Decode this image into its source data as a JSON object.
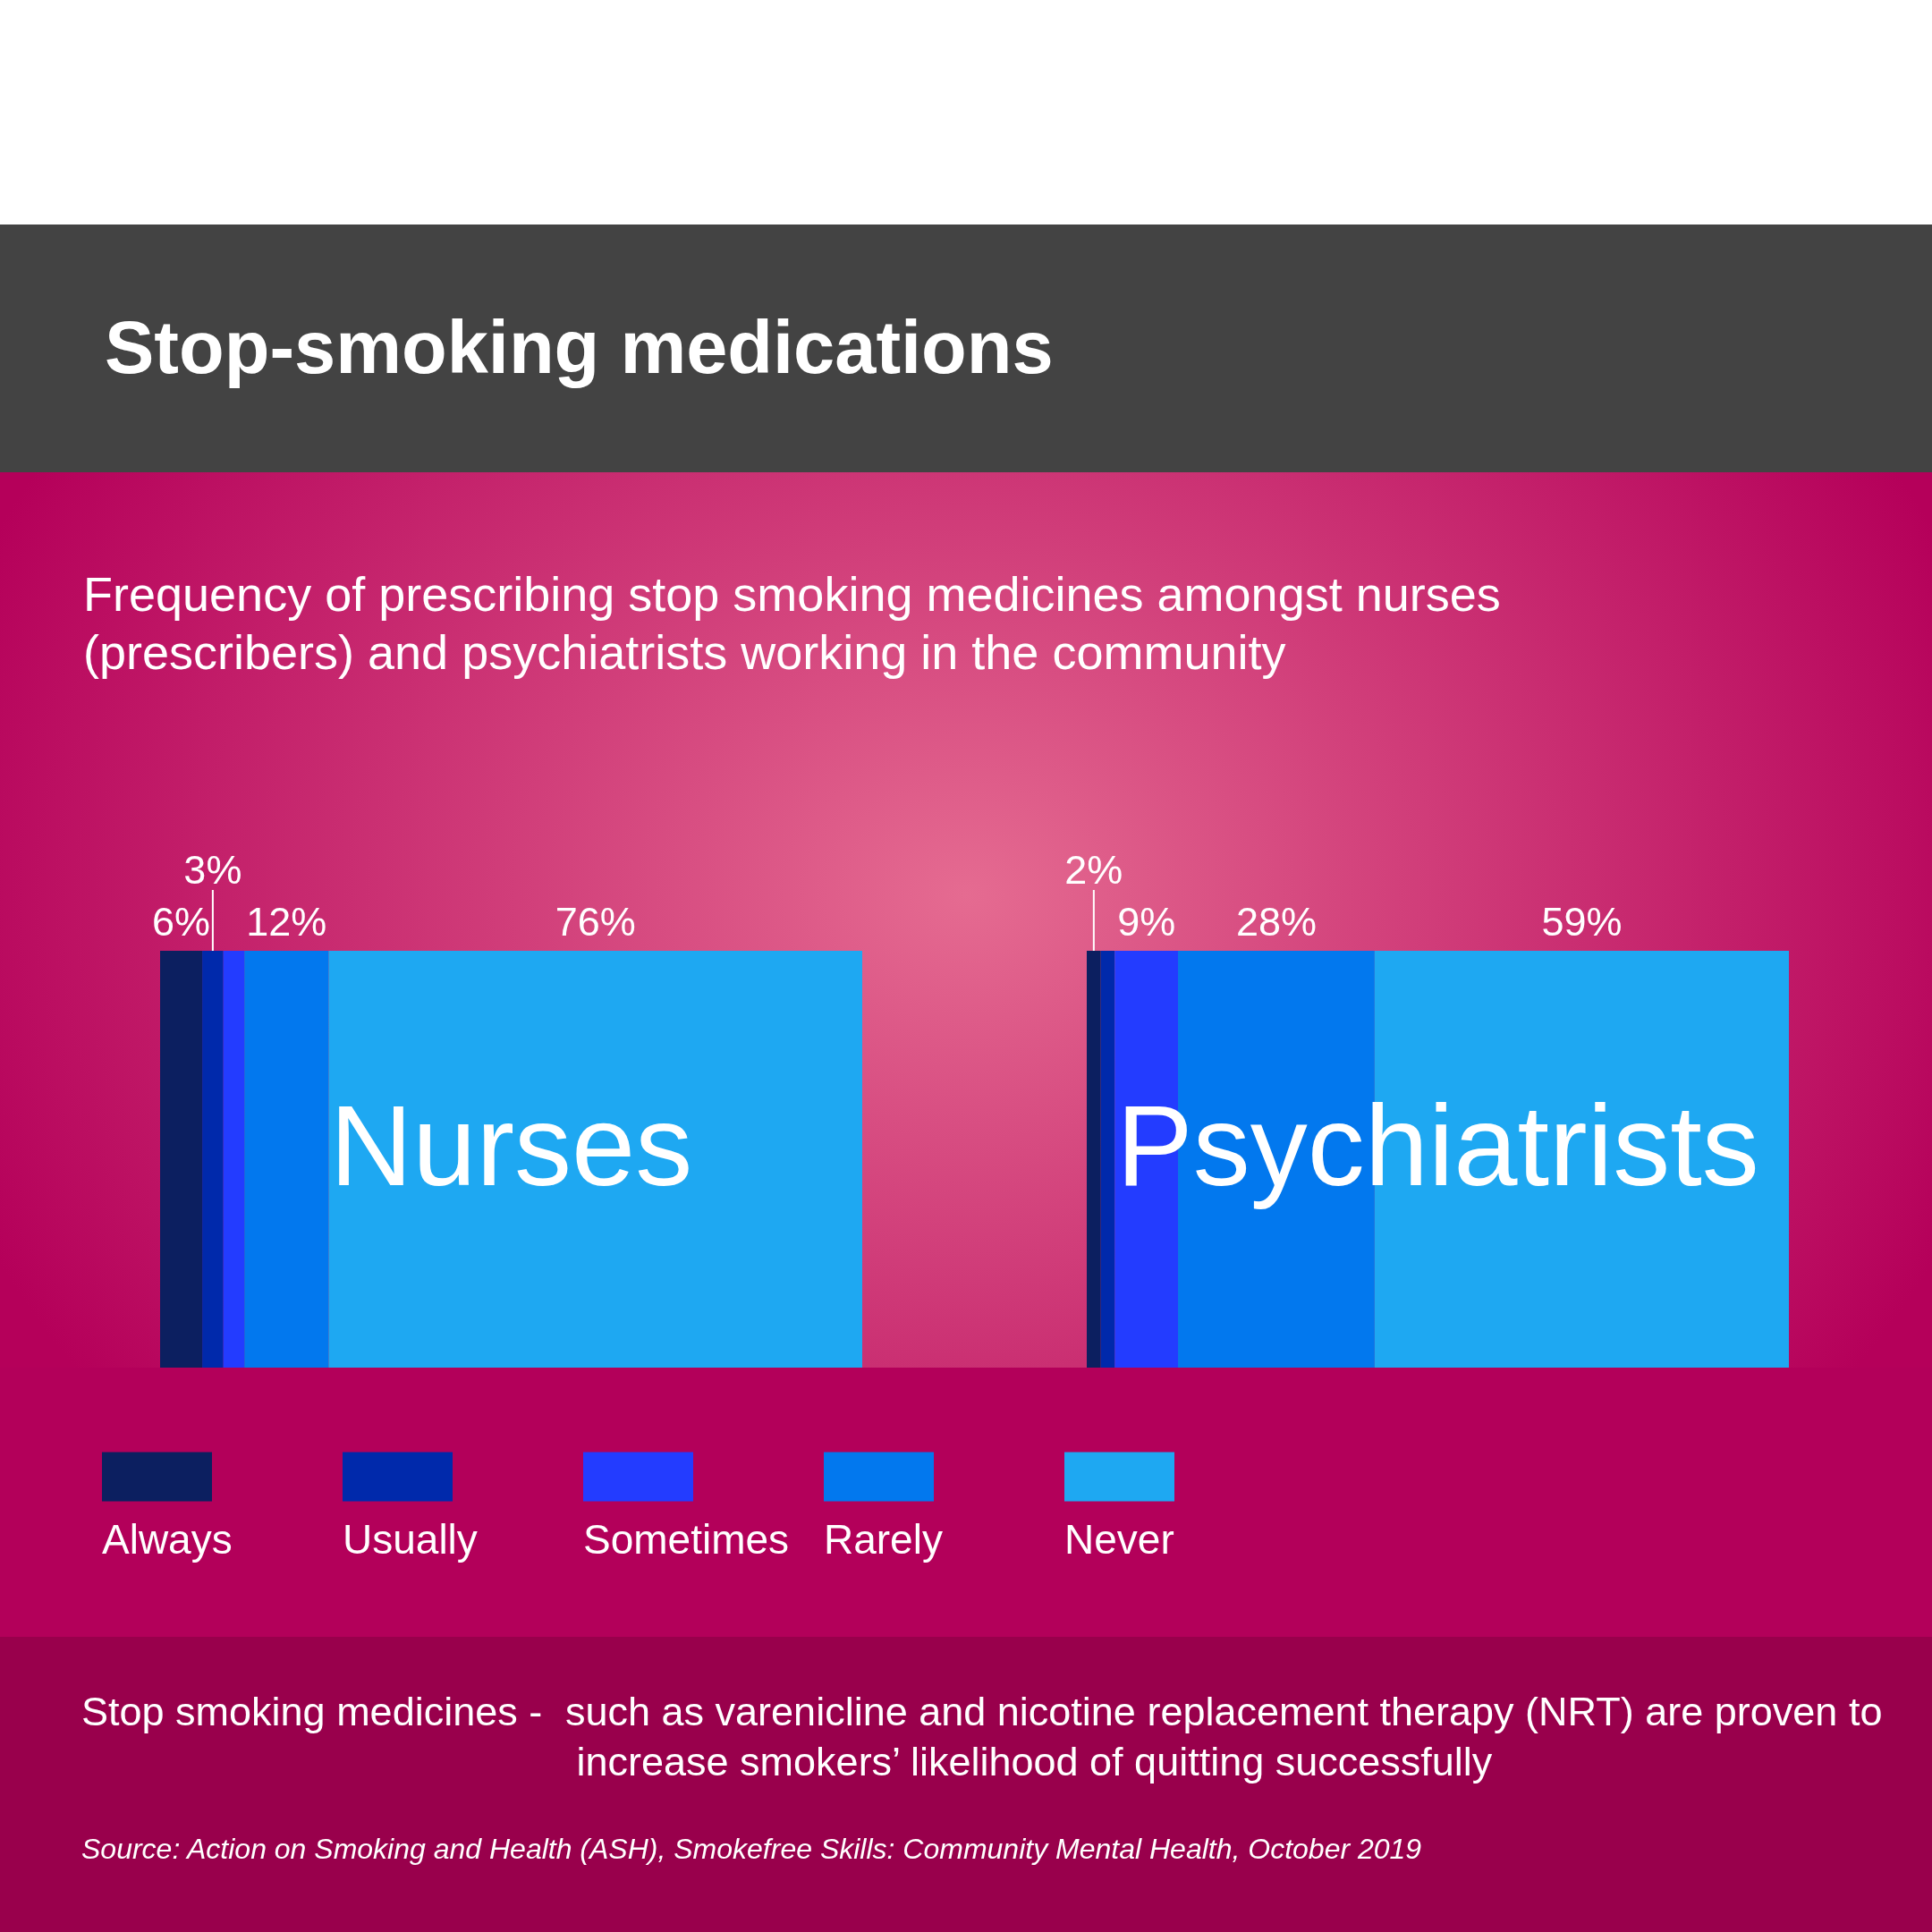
{
  "chart_data": [
    {
      "type": "bar",
      "orientation": "horizontal",
      "stacked": true,
      "title": "Stop-smoking medications",
      "subtitle": "Frequency of prescribing stop smoking medicines amongst nurses (prescribers) and psychiatrists working in the community",
      "categories": [
        "Nurses"
      ],
      "series": [
        {
          "name": "Always",
          "color": "#0c1f60",
          "values": [
            6
          ],
          "value_labels": [
            "6%"
          ]
        },
        {
          "name": "Usually",
          "color": "#0029ab",
          "values": [
            3
          ],
          "value_labels": [
            "3%"
          ]
        },
        {
          "name": "Sometimes",
          "color": "#233cff",
          "values": [
            3
          ],
          "value_labels": [
            null
          ]
        },
        {
          "name": "Rarely",
          "color": "#0278ee",
          "values": [
            12
          ],
          "value_labels": [
            "12%"
          ]
        },
        {
          "name": "Never",
          "color": "#1ea8f2",
          "values": [
            76
          ],
          "value_labels": [
            "76%"
          ]
        }
      ],
      "tick_labels": "y",
      "legend": "bottom",
      "annotations": [
        "Stop smoking medicines -",
        "such as varenicline and nicotine replacement therapy (NRT) are proven to increase smokers’ likelihood of quitting successfully",
        "Source: Action on Smoking and Health (ASH), Smokefree Skills: Community Mental Health, October 2019"
      ]
    },
    {
      "type": "bar",
      "orientation": "horizontal",
      "stacked": true,
      "categories": [
        "Psychiatrists"
      ],
      "series": [
        {
          "color": "#0c1f60",
          "values": [
            2
          ],
          "value_labels": [
            "2%"
          ]
        },
        {
          "color": "#0029ab",
          "values": [
            2
          ],
          "value_labels": [
            null
          ]
        },
        {
          "color": "#233cff",
          "values": [
            9
          ],
          "value_labels": [
            "9%"
          ]
        },
        {
          "color": "#0278ee",
          "values": [
            28
          ],
          "value_labels": [
            "28%"
          ]
        },
        {
          "color": "#1ea8f2",
          "values": [
            59
          ],
          "value_labels": [
            "59%"
          ]
        }
      ],
      "tick_labels": "y"
    }
  ]
}
